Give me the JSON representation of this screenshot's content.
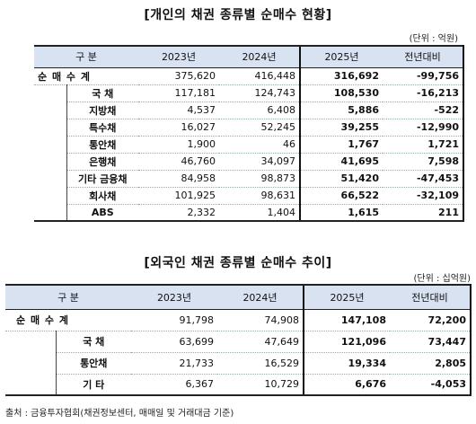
{
  "t1": {
    "title": "[개인의 채권 종류별 순매수 현황]",
    "unit": "(단위 : 억원)",
    "headers": [
      "구 분",
      "2023년",
      "2024년",
      "2025년",
      "전년대비"
    ],
    "rows": [
      {
        "label": "순 매 수 계",
        "v": [
          "375,620",
          "416,448",
          "316,692",
          "-99,756"
        ]
      },
      {
        "label": "국 채",
        "v": [
          "117,181",
          "124,743",
          "108,530",
          "-16,213"
        ]
      },
      {
        "label": "지방채",
        "v": [
          "4,537",
          "6,408",
          "5,886",
          "-522"
        ]
      },
      {
        "label": "특수채",
        "v": [
          "16,027",
          "52,245",
          "39,255",
          "-12,990"
        ]
      },
      {
        "label": "통안채",
        "v": [
          "1,900",
          "46",
          "1,767",
          "1,721"
        ]
      },
      {
        "label": "은행채",
        "v": [
          "46,760",
          "34,097",
          "41,695",
          "7,598"
        ]
      },
      {
        "label": "기타 금융채",
        "v": [
          "84,958",
          "98,873",
          "51,420",
          "-47,453"
        ]
      },
      {
        "label": "회사채",
        "v": [
          "101,925",
          "98,631",
          "66,522",
          "-32,109"
        ]
      },
      {
        "label": "ABS",
        "v": [
          "2,332",
          "1,404",
          "1,615",
          "211"
        ]
      }
    ]
  },
  "t2": {
    "title": "[외국인 채권 종류별 순매수 추이]",
    "unit": "(단위 : 십억원)",
    "headers": [
      "구 분",
      "2023년",
      "2024년",
      "2025년",
      "전년대비"
    ],
    "rows": [
      {
        "label": "순 매 수 계",
        "v": [
          "91,798",
          "74,908",
          "147,108",
          "72,200"
        ]
      },
      {
        "label": "국 채",
        "v": [
          "63,699",
          "47,649",
          "121,096",
          "73,447"
        ]
      },
      {
        "label": "통안채",
        "v": [
          "21,733",
          "16,529",
          "19,334",
          "2,805"
        ]
      },
      {
        "label": "기 타",
        "v": [
          "6,367",
          "10,729",
          "6,676",
          "-4,053"
        ]
      }
    ]
  },
  "footer": "출처 : 금융투자협회(채권정보센터, 매매일 및 거래대금 기준)"
}
